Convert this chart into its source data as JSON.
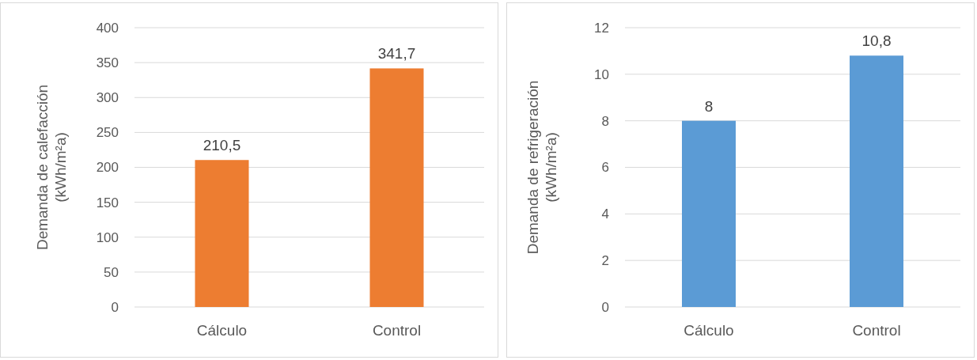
{
  "chart_data": [
    {
      "type": "bar",
      "categories": [
        "Cálculo",
        "Control"
      ],
      "values": [
        210.5,
        341.7
      ],
      "value_labels": [
        "210,5",
        "341,7"
      ],
      "color": "#ed7d31",
      "ylabel": "Demanda de calefacción\n(kWh/m²a)",
      "ylim": [
        0,
        400
      ],
      "yticks": [
        0,
        50,
        100,
        150,
        200,
        250,
        300,
        350,
        400
      ],
      "grid": "y"
    },
    {
      "type": "bar",
      "categories": [
        "Cálculo",
        "Control"
      ],
      "values": [
        8,
        10.8
      ],
      "value_labels": [
        "8",
        "10,8"
      ],
      "color": "#5b9bd5",
      "ylabel": "Demanda de refrigeración\n(kWh/m²a)",
      "ylim": [
        0,
        12
      ],
      "yticks": [
        0,
        2,
        4,
        6,
        8,
        10,
        12
      ],
      "grid": "y"
    }
  ]
}
